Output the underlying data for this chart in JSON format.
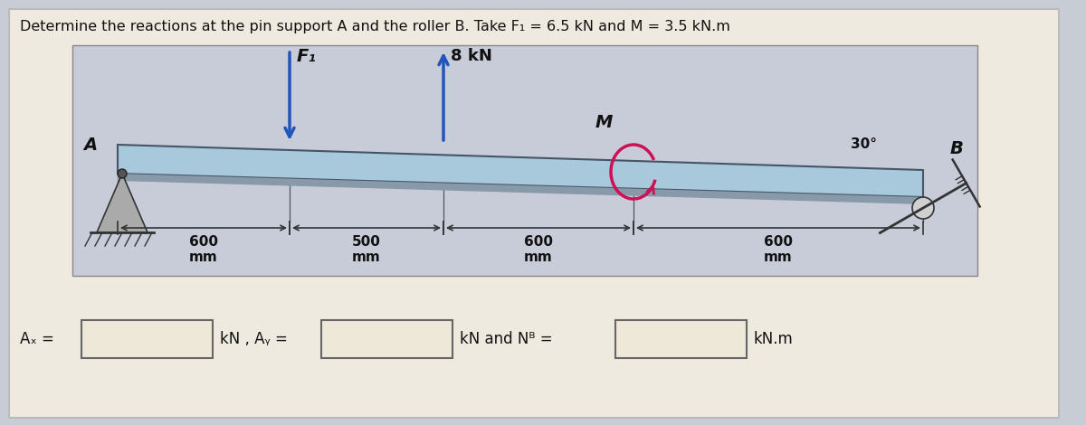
{
  "title": "Determine the reactions at the pin support A and the roller B. Take F₁ = 6.5 kN and M = 3.5 kN.m",
  "outer_bg": "#c8ccd4",
  "card_bg": "#eeeae0",
  "diag_bg": "#c8ccd8",
  "beam_color": "#a8c8dc",
  "beam_shadow": "#8899aa",
  "F1_label": "F₁",
  "load_8kN_label": "8 kN",
  "M_label": "M",
  "angle_label": "30°",
  "B_label": "B",
  "A_label": "A",
  "dims": [
    "600\nmm",
    "500\nmm",
    "600\nmm",
    "600\nmm"
  ],
  "answer_label1": "Aₓ =",
  "answer_label2": "kN , Aᵧ =",
  "answer_label3": "kN and Nᴮ =",
  "answer_label4": "kN.m"
}
